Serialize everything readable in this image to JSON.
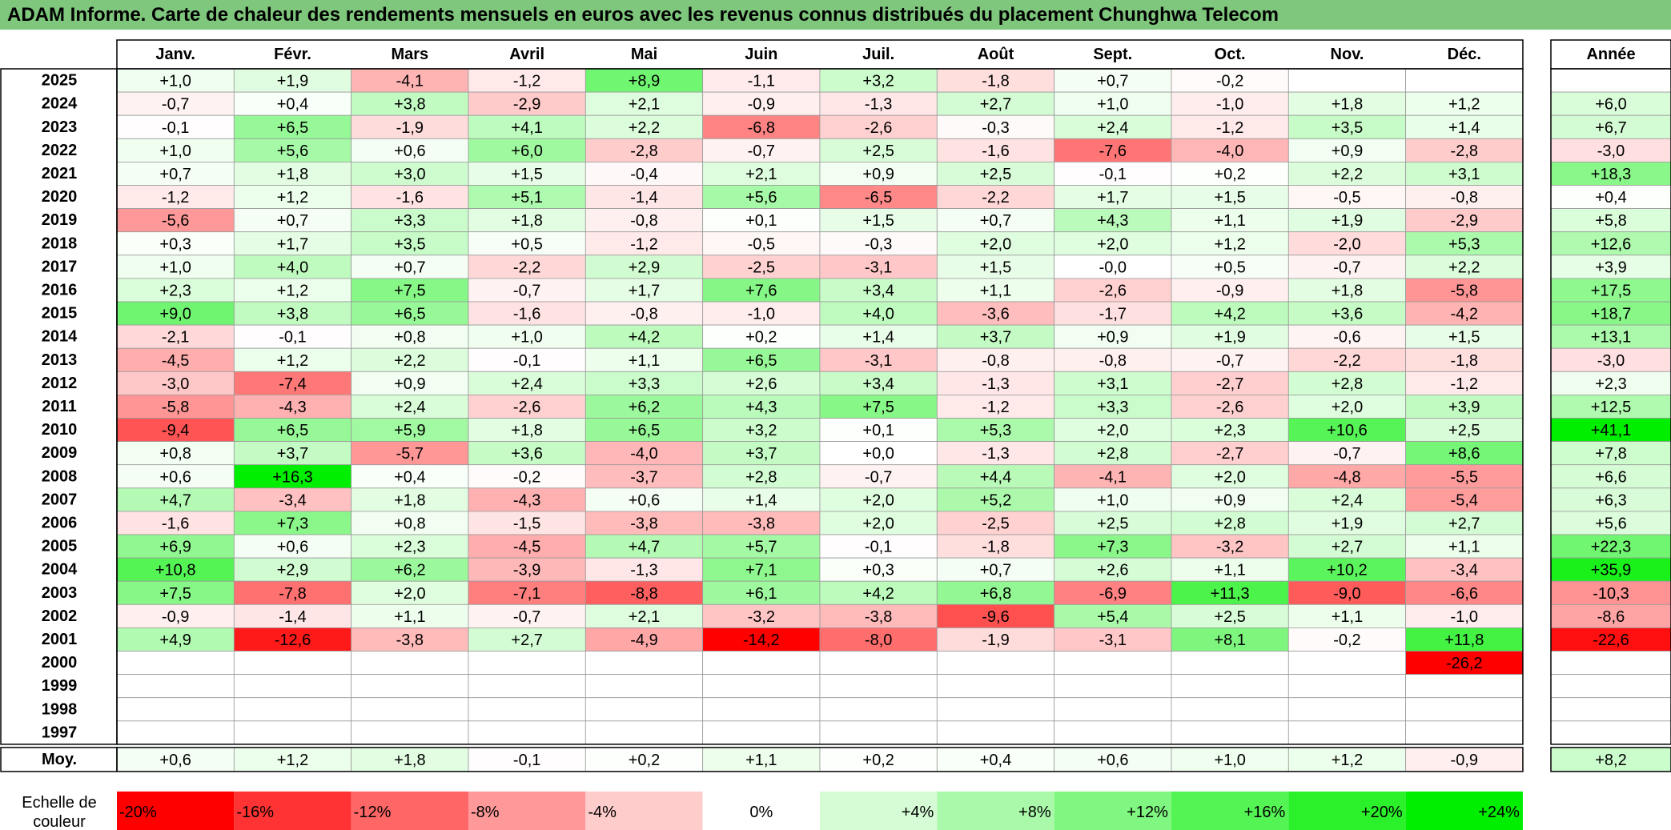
{
  "title": "ADAM Informe. Carte de chaleur des rendements mensuels en euros avec les revenus connus distribués du placement Chunghwa Telecom",
  "chart_data": {
    "type": "heatmap",
    "columns": [
      "Janv.",
      "Févr.",
      "Mars",
      "Avril",
      "Mai",
      "Juin",
      "Juil.",
      "Août",
      "Sept.",
      "Oct.",
      "Nov.",
      "Déc."
    ],
    "year_header": "Année",
    "average_label": "Moy.",
    "rows": [
      {
        "year": "2025",
        "values": [
          "+1,0",
          "+1,9",
          "-4,1",
          "-1,2",
          "+8,9",
          "-1,1",
          "+3,2",
          "-1,8",
          "+0,7",
          "-0,2",
          "",
          ""
        ],
        "annual": ""
      },
      {
        "year": "2024",
        "values": [
          "-0,7",
          "+0,4",
          "+3,8",
          "-2,9",
          "+2,1",
          "-0,9",
          "-1,3",
          "+2,7",
          "+1,0",
          "-1,0",
          "+1,8",
          "+1,2"
        ],
        "annual": "+6,0"
      },
      {
        "year": "2023",
        "values": [
          "-0,1",
          "+6,5",
          "-1,9",
          "+4,1",
          "+2,2",
          "-6,8",
          "-2,6",
          "-0,3",
          "+2,4",
          "-1,2",
          "+3,5",
          "+1,4"
        ],
        "annual": "+6,7"
      },
      {
        "year": "2022",
        "values": [
          "+1,0",
          "+5,6",
          "+0,6",
          "+6,0",
          "-2,8",
          "-0,7",
          "+2,5",
          "-1,6",
          "-7,6",
          "-4,0",
          "+0,9",
          "-2,8"
        ],
        "annual": "-3,0"
      },
      {
        "year": "2021",
        "values": [
          "+0,7",
          "+1,8",
          "+3,0",
          "+1,5",
          "-0,4",
          "+2,1",
          "+0,9",
          "+2,5",
          "-0,1",
          "+0,2",
          "+2,2",
          "+3,1"
        ],
        "annual": "+18,3"
      },
      {
        "year": "2020",
        "values": [
          "-1,2",
          "+1,2",
          "-1,6",
          "+5,1",
          "-1,4",
          "+5,6",
          "-6,5",
          "-2,2",
          "+1,7",
          "+1,5",
          "-0,5",
          "-0,8"
        ],
        "annual": "+0,4"
      },
      {
        "year": "2019",
        "values": [
          "-5,6",
          "+0,7",
          "+3,3",
          "+1,8",
          "-0,8",
          "+0,1",
          "+1,5",
          "+0,7",
          "+4,3",
          "+1,1",
          "+1,9",
          "-2,9"
        ],
        "annual": "+5,8"
      },
      {
        "year": "2018",
        "values": [
          "+0,3",
          "+1,7",
          "+3,5",
          "+0,5",
          "-1,2",
          "-0,5",
          "-0,3",
          "+2,0",
          "+2,0",
          "+1,2",
          "-2,0",
          "+5,3"
        ],
        "annual": "+12,6"
      },
      {
        "year": "2017",
        "values": [
          "+1,0",
          "+4,0",
          "+0,7",
          "-2,2",
          "+2,9",
          "-2,5",
          "-3,1",
          "+1,5",
          "-0,0",
          "+0,5",
          "-0,7",
          "+2,2"
        ],
        "annual": "+3,9"
      },
      {
        "year": "2016",
        "values": [
          "+2,3",
          "+1,2",
          "+7,5",
          "-0,7",
          "+1,7",
          "+7,6",
          "+3,4",
          "+1,1",
          "-2,6",
          "-0,9",
          "+1,8",
          "-5,8"
        ],
        "annual": "+17,5"
      },
      {
        "year": "2015",
        "values": [
          "+9,0",
          "+3,8",
          "+6,5",
          "-1,6",
          "-0,8",
          "-1,0",
          "+4,0",
          "-3,6",
          "-1,7",
          "+4,2",
          "+3,6",
          "-4,2"
        ],
        "annual": "+18,7"
      },
      {
        "year": "2014",
        "values": [
          "-2,1",
          "-0,1",
          "+0,8",
          "+1,0",
          "+4,2",
          "+0,2",
          "+1,4",
          "+3,7",
          "+0,9",
          "+1,9",
          "-0,6",
          "+1,5"
        ],
        "annual": "+13,1"
      },
      {
        "year": "2013",
        "values": [
          "-4,5",
          "+1,2",
          "+2,2",
          "-0,1",
          "+1,1",
          "+6,5",
          "-3,1",
          "-0,8",
          "-0,8",
          "-0,7",
          "-2,2",
          "-1,8"
        ],
        "annual": "-3,0"
      },
      {
        "year": "2012",
        "values": [
          "-3,0",
          "-7,4",
          "+0,9",
          "+2,4",
          "+3,3",
          "+2,6",
          "+3,4",
          "-1,3",
          "+3,1",
          "-2,7",
          "+2,8",
          "-1,2"
        ],
        "annual": "+2,3"
      },
      {
        "year": "2011",
        "values": [
          "-5,8",
          "-4,3",
          "+2,4",
          "-2,6",
          "+6,2",
          "+4,3",
          "+7,5",
          "-1,2",
          "+3,3",
          "-2,6",
          "+2,0",
          "+3,9"
        ],
        "annual": "+12,5"
      },
      {
        "year": "2010",
        "values": [
          "-9,4",
          "+6,5",
          "+5,9",
          "+1,8",
          "+6,5",
          "+3,2",
          "+0,1",
          "+5,3",
          "+2,0",
          "+2,3",
          "+10,6",
          "+2,5"
        ],
        "annual": "+41,1"
      },
      {
        "year": "2009",
        "values": [
          "+0,8",
          "+3,7",
          "-5,7",
          "+3,6",
          "-4,0",
          "+3,7",
          "+0,0",
          "-1,3",
          "+2,8",
          "-2,7",
          "-0,7",
          "+8,6"
        ],
        "annual": "+7,8"
      },
      {
        "year": "2008",
        "values": [
          "+0,6",
          "+16,3",
          "+0,4",
          "-0,2",
          "-3,7",
          "+2,8",
          "-0,7",
          "+4,4",
          "-4,1",
          "+2,0",
          "-4,8",
          "-5,5"
        ],
        "annual": "+6,6"
      },
      {
        "year": "2007",
        "values": [
          "+4,7",
          "-3,4",
          "+1,8",
          "-4,3",
          "+0,6",
          "+1,4",
          "+2,0",
          "+5,2",
          "+1,0",
          "+0,9",
          "+2,4",
          "-5,4"
        ],
        "annual": "+6,3"
      },
      {
        "year": "2006",
        "values": [
          "-1,6",
          "+7,3",
          "+0,8",
          "-1,5",
          "-3,8",
          "-3,8",
          "+2,0",
          "-2,5",
          "+2,5",
          "+2,8",
          "+1,9",
          "+2,7"
        ],
        "annual": "+5,6"
      },
      {
        "year": "2005",
        "values": [
          "+6,9",
          "+0,6",
          "+2,3",
          "-4,5",
          "+4,7",
          "+5,7",
          "-0,1",
          "-1,8",
          "+7,3",
          "-3,2",
          "+2,7",
          "+1,1"
        ],
        "annual": "+22,3"
      },
      {
        "year": "2004",
        "values": [
          "+10,8",
          "+2,9",
          "+6,2",
          "-3,9",
          "-1,3",
          "+7,1",
          "+0,3",
          "+0,7",
          "+2,6",
          "+1,1",
          "+10,2",
          "-3,4"
        ],
        "annual": "+35,9"
      },
      {
        "year": "2003",
        "values": [
          "+7,5",
          "-7,8",
          "+2,0",
          "-7,1",
          "-8,8",
          "+6,1",
          "+4,2",
          "+6,8",
          "-6,9",
          "+11,3",
          "-9,0",
          "-6,6"
        ],
        "annual": "-10,3"
      },
      {
        "year": "2002",
        "values": [
          "-0,9",
          "-1,4",
          "+1,1",
          "-0,7",
          "+2,1",
          "-3,2",
          "-3,8",
          "-9,6",
          "+5,4",
          "+2,5",
          "+1,1",
          "-1,0"
        ],
        "annual": "-8,6"
      },
      {
        "year": "2001",
        "values": [
          "+4,9",
          "-12,6",
          "-3,8",
          "+2,7",
          "-4,9",
          "-14,2",
          "-8,0",
          "-1,9",
          "-3,1",
          "+8,1",
          "-0,2",
          "+11,8"
        ],
        "annual": "-22,6"
      },
      {
        "year": "2000",
        "values": [
          "",
          "",
          "",
          "",
          "",
          "",
          "",
          "",
          "",
          "",
          "",
          "-26,2"
        ],
        "annual": ""
      },
      {
        "year": "1999",
        "values": [
          "",
          "",
          "",
          "",
          "",
          "",
          "",
          "",
          "",
          "",
          "",
          ""
        ],
        "annual": ""
      },
      {
        "year": "1998",
        "values": [
          "",
          "",
          "",
          "",
          "",
          "",
          "",
          "",
          "",
          "",
          "",
          ""
        ],
        "annual": ""
      },
      {
        "year": "1997",
        "values": [
          "",
          "",
          "",
          "",
          "",
          "",
          "",
          "",
          "",
          "",
          "",
          ""
        ],
        "annual": ""
      }
    ],
    "averages": [
      "+0,6",
      "+1,2",
      "+1,8",
      "-0,1",
      "+0,2",
      "+1,1",
      "+0,2",
      "+0,4",
      "+0,6",
      "+1,0",
      "+1,2",
      "-0,9"
    ],
    "average_annual": "+8,2",
    "legend_label": "Echelle de couleur",
    "legend": [
      "-20%",
      "-16%",
      "-12%",
      "-8%",
      "-4%",
      "0%",
      "+4%",
      "+8%",
      "+12%",
      "+16%",
      "+20%",
      "+24%"
    ],
    "legend_values": [
      -20,
      -16,
      -12,
      -8,
      -4,
      0,
      4,
      8,
      12,
      16,
      20,
      24
    ],
    "colors": {
      "title_bg": "#7ec77c",
      "negative": "#ff0000",
      "neutral": "#ffffff",
      "positive": "#00ee00"
    }
  }
}
